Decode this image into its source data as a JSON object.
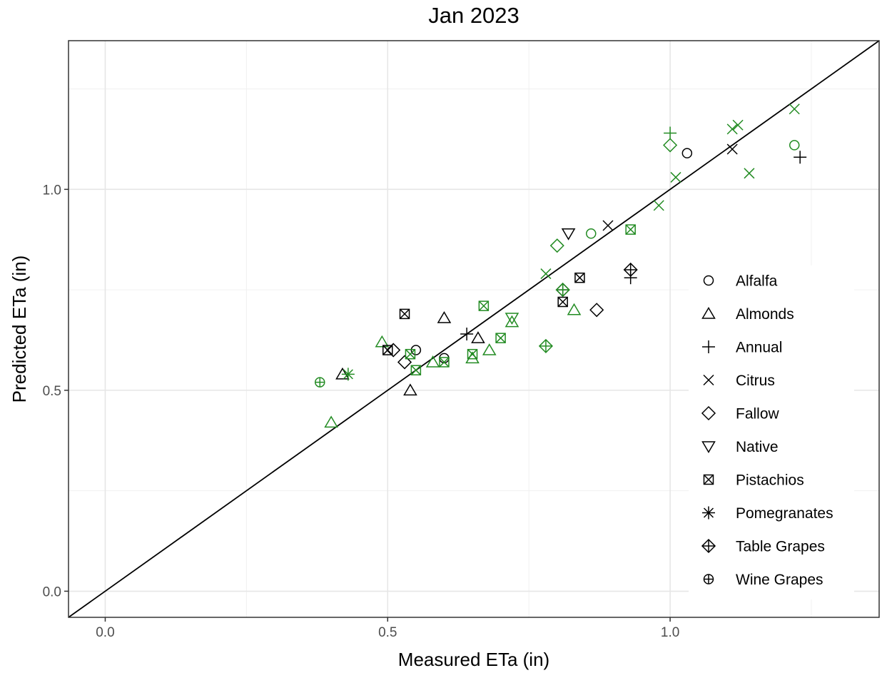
{
  "chart_data": {
    "type": "scatter",
    "title": "Jan 2023",
    "xlabel": "Measured ETa (in)",
    "ylabel": "Predicted ETa (in)",
    "xlim": [
      -0.065,
      1.37
    ],
    "ylim": [
      -0.065,
      1.37
    ],
    "xticks": [
      {
        "value": 0.0,
        "label": "0.0"
      },
      {
        "value": 0.5,
        "label": "0.5"
      },
      {
        "value": 1.0,
        "label": "1.0"
      }
    ],
    "yticks": [
      {
        "value": 0.0,
        "label": "0.0"
      },
      {
        "value": 0.5,
        "label": "0.5"
      },
      {
        "value": 1.0,
        "label": "1.0"
      }
    ],
    "minor_ticks": [
      0.25,
      0.75,
      1.25
    ],
    "grid": true,
    "legend_position": "right-inside",
    "reference_line": {
      "slope": 1,
      "intercept": 0
    },
    "colors": {
      "black": "#000000",
      "green": "#228b22"
    },
    "series": [
      {
        "name": "Alfalfa",
        "shape": "circle",
        "points": [
          {
            "x": 1.03,
            "y": 1.09,
            "c": "black"
          },
          {
            "x": 0.55,
            "y": 0.6,
            "c": "black"
          },
          {
            "x": 0.6,
            "y": 0.58,
            "c": "black"
          },
          {
            "x": 0.86,
            "y": 0.89,
            "c": "green"
          },
          {
            "x": 1.22,
            "y": 1.11,
            "c": "green"
          }
        ]
      },
      {
        "name": "Almonds",
        "shape": "triangle-up",
        "points": [
          {
            "x": 0.42,
            "y": 0.54,
            "c": "black"
          },
          {
            "x": 0.54,
            "y": 0.5,
            "c": "black"
          },
          {
            "x": 0.6,
            "y": 0.68,
            "c": "black"
          },
          {
            "x": 0.66,
            "y": 0.63,
            "c": "black"
          },
          {
            "x": 0.4,
            "y": 0.42,
            "c": "green"
          },
          {
            "x": 0.49,
            "y": 0.62,
            "c": "green"
          },
          {
            "x": 0.58,
            "y": 0.57,
            "c": "green"
          },
          {
            "x": 0.65,
            "y": 0.58,
            "c": "green"
          },
          {
            "x": 0.68,
            "y": 0.6,
            "c": "green"
          },
          {
            "x": 0.72,
            "y": 0.67,
            "c": "green"
          },
          {
            "x": 0.83,
            "y": 0.7,
            "c": "green"
          }
        ]
      },
      {
        "name": "Annual",
        "shape": "plus",
        "points": [
          {
            "x": 0.64,
            "y": 0.64,
            "c": "black"
          },
          {
            "x": 0.93,
            "y": 0.78,
            "c": "black"
          },
          {
            "x": 1.23,
            "y": 1.08,
            "c": "black"
          },
          {
            "x": 1.0,
            "y": 1.14,
            "c": "green"
          }
        ]
      },
      {
        "name": "Citrus",
        "shape": "cross",
        "points": [
          {
            "x": 0.89,
            "y": 0.91,
            "c": "black"
          },
          {
            "x": 1.11,
            "y": 1.1,
            "c": "black"
          },
          {
            "x": 0.78,
            "y": 0.79,
            "c": "green"
          },
          {
            "x": 0.98,
            "y": 0.96,
            "c": "green"
          },
          {
            "x": 1.01,
            "y": 1.03,
            "c": "green"
          },
          {
            "x": 1.11,
            "y": 1.15,
            "c": "green"
          },
          {
            "x": 1.12,
            "y": 1.16,
            "c": "green"
          },
          {
            "x": 1.14,
            "y": 1.04,
            "c": "green"
          },
          {
            "x": 1.22,
            "y": 1.2,
            "c": "green"
          }
        ]
      },
      {
        "name": "Fallow",
        "shape": "diamond",
        "points": [
          {
            "x": 0.53,
            "y": 0.57,
            "c": "black"
          },
          {
            "x": 0.51,
            "y": 0.6,
            "c": "black"
          },
          {
            "x": 0.87,
            "y": 0.7,
            "c": "black"
          },
          {
            "x": 0.8,
            "y": 0.86,
            "c": "green"
          },
          {
            "x": 1.0,
            "y": 1.11,
            "c": "green"
          }
        ]
      },
      {
        "name": "Native",
        "shape": "triangle-down",
        "points": [
          {
            "x": 0.82,
            "y": 0.89,
            "c": "black"
          },
          {
            "x": 0.72,
            "y": 0.68,
            "c": "green"
          }
        ]
      },
      {
        "name": "Pistachios",
        "shape": "square-x",
        "points": [
          {
            "x": 0.53,
            "y": 0.69,
            "c": "black"
          },
          {
            "x": 0.5,
            "y": 0.6,
            "c": "black"
          },
          {
            "x": 0.84,
            "y": 0.78,
            "c": "black"
          },
          {
            "x": 0.81,
            "y": 0.72,
            "c": "black"
          },
          {
            "x": 0.54,
            "y": 0.59,
            "c": "green"
          },
          {
            "x": 0.55,
            "y": 0.55,
            "c": "green"
          },
          {
            "x": 0.6,
            "y": 0.57,
            "c": "green"
          },
          {
            "x": 0.65,
            "y": 0.59,
            "c": "green"
          },
          {
            "x": 0.67,
            "y": 0.71,
            "c": "green"
          },
          {
            "x": 0.7,
            "y": 0.63,
            "c": "green"
          },
          {
            "x": 0.93,
            "y": 0.9,
            "c": "green"
          }
        ]
      },
      {
        "name": "Pomegranates",
        "shape": "asterisk",
        "points": [
          {
            "x": 0.43,
            "y": 0.54,
            "c": "green"
          }
        ]
      },
      {
        "name": "Table Grapes",
        "shape": "diamond-plus",
        "points": [
          {
            "x": 0.93,
            "y": 0.8,
            "c": "black"
          },
          {
            "x": 0.81,
            "y": 0.75,
            "c": "black"
          },
          {
            "x": 0.81,
            "y": 0.75,
            "c": "green"
          },
          {
            "x": 0.78,
            "y": 0.61,
            "c": "green"
          }
        ]
      },
      {
        "name": "Wine Grapes",
        "shape": "circle-plus",
        "points": [
          {
            "x": 0.38,
            "y": 0.52,
            "c": "green"
          }
        ]
      }
    ]
  }
}
